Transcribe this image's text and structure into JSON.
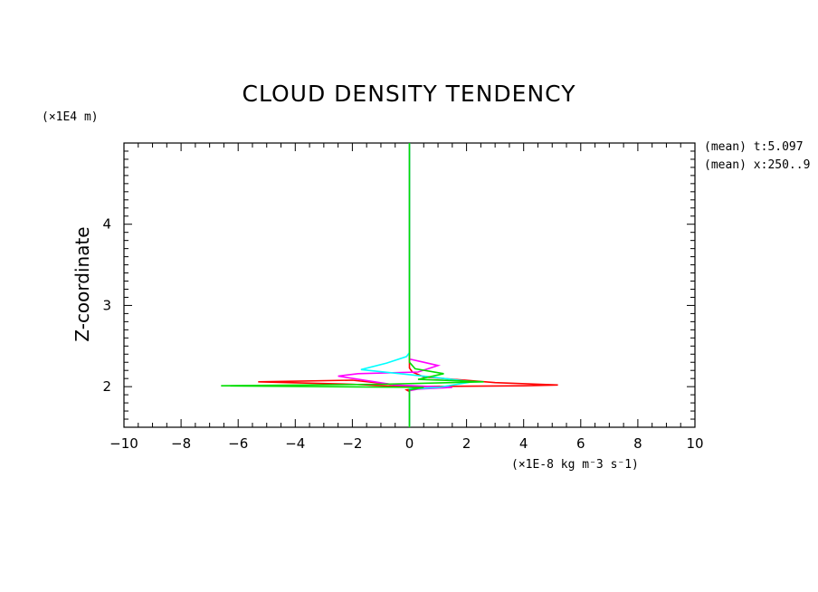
{
  "chart_data": {
    "type": "line",
    "title": "CLOUD DENSITY TENDENCY",
    "xlabel": "(x1E-8 kg m^-3 s^-1)",
    "xlabel_display": "(×1E-8 kg m⁻3 s⁻1)",
    "ylabel": "Z-coordinate",
    "yunit": "(×1E4 m)",
    "annotations": [
      "(mean) t:5.097",
      "(mean) x:250..9"
    ],
    "xlim": [
      -10,
      10
    ],
    "ylim": [
      1.5,
      5.0
    ],
    "x_ticks": [
      -10,
      -8,
      -6,
      -4,
      -2,
      0,
      2,
      4,
      6,
      8,
      10
    ],
    "x_tick_labels": [
      "−10",
      "−8",
      "−6",
      "−4",
      "−2",
      "0",
      "2",
      "4",
      "6",
      "8",
      "10"
    ],
    "y_ticks": [
      2,
      3,
      4
    ],
    "y_tick_labels": [
      "2",
      "3",
      "4"
    ],
    "grid": false,
    "legend": "none",
    "series": [
      {
        "color": "#ff0000",
        "x": [
          0,
          0,
          -0.1,
          0.2,
          0.5,
          -0.3,
          -2.0,
          -5.3,
          -2.0,
          0.1,
          4.0,
          5.2,
          3.0,
          0.5,
          0.1,
          0,
          0,
          0
        ],
        "y": [
          1.5,
          1.94,
          1.96,
          1.98,
          1.99,
          2.0,
          2.03,
          2.06,
          2.08,
          2.0,
          2.01,
          2.02,
          2.05,
          2.12,
          2.18,
          2.23,
          3.0,
          5.0
        ]
      },
      {
        "color": "#ff00ff",
        "x": [
          0,
          0,
          0.3,
          1.5,
          -0.5,
          -2.5,
          -1.8,
          0.3,
          1.0,
          0.5,
          0,
          0,
          0
        ],
        "y": [
          1.5,
          1.95,
          1.97,
          1.99,
          2.02,
          2.13,
          2.16,
          2.18,
          2.26,
          2.3,
          2.34,
          3.0,
          5.0
        ]
      },
      {
        "color": "#00ffff",
        "x": [
          0,
          0,
          1.0,
          2.2,
          1.0,
          0.2,
          -1.7,
          -0.8,
          -0.1,
          0,
          0,
          0
        ],
        "y": [
          1.5,
          1.97,
          1.99,
          2.06,
          2.11,
          2.14,
          2.21,
          2.29,
          2.37,
          2.42,
          3.0,
          5.0
        ]
      },
      {
        "color": "#00dd00",
        "x": [
          0,
          0,
          0.5,
          -6.6,
          -1.0,
          2.6,
          0.3,
          1.2,
          0.2,
          0,
          0,
          0
        ],
        "y": [
          1.5,
          1.96,
          1.99,
          2.01,
          2.03,
          2.06,
          2.09,
          2.16,
          2.22,
          2.3,
          3.0,
          5.0
        ]
      }
    ]
  }
}
